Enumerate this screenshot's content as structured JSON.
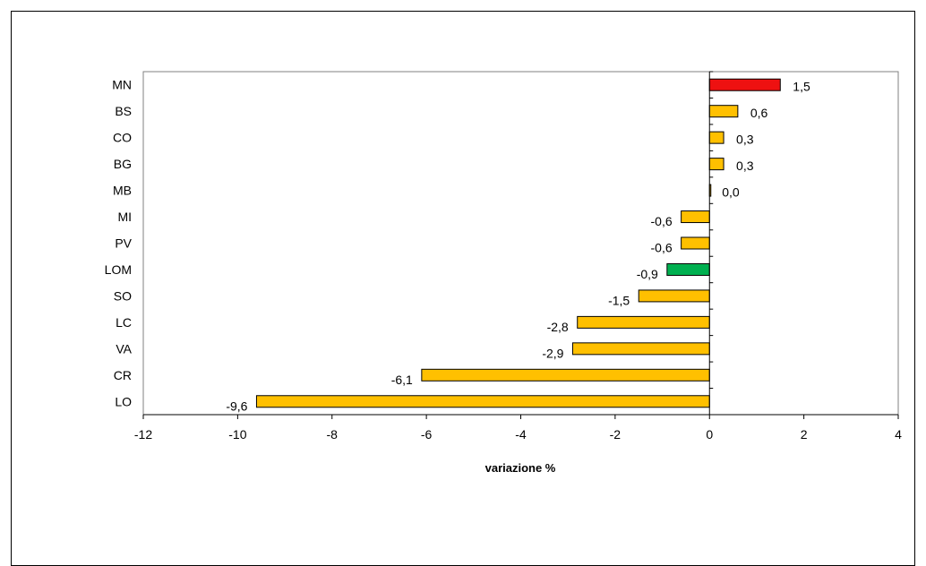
{
  "chart_data": {
    "type": "bar",
    "orientation": "horizontal",
    "categories": [
      "MN",
      "BS",
      "CO",
      "BG",
      "MB",
      "MI",
      "PV",
      "LOM",
      "SO",
      "LC",
      "VA",
      "CR",
      "LO"
    ],
    "values": [
      1.5,
      0.6,
      0.3,
      0.3,
      0.0,
      -0.6,
      -0.6,
      -0.9,
      -1.5,
      -2.8,
      -2.9,
      -6.1,
      -9.6
    ],
    "value_labels": [
      "1,5",
      "0,6",
      "0,3",
      "0,3",
      "0,0",
      "-0,6",
      "-0,6",
      "-0,9",
      "-1,5",
      "-2,8",
      "-2,9",
      "-6,1",
      "-9,6"
    ],
    "bar_colors": [
      "#ee1111",
      "#ffc000",
      "#ffc000",
      "#ffc000",
      "#ffc000",
      "#ffc000",
      "#ffc000",
      "#00b050",
      "#ffc000",
      "#ffc000",
      "#ffc000",
      "#ffc000",
      "#ffc000"
    ],
    "xlabel": "variazione %",
    "ylabel": "",
    "title": "",
    "xlim": [
      -12,
      4
    ],
    "xticks": [
      -12,
      -10,
      -8,
      -6,
      -4,
      -2,
      0,
      2,
      4
    ],
    "xtick_labels": [
      "-12",
      "-10",
      "-8",
      "-6",
      "-4",
      "-2",
      "0",
      "2",
      "4"
    ],
    "grid": false,
    "legend": "none"
  }
}
